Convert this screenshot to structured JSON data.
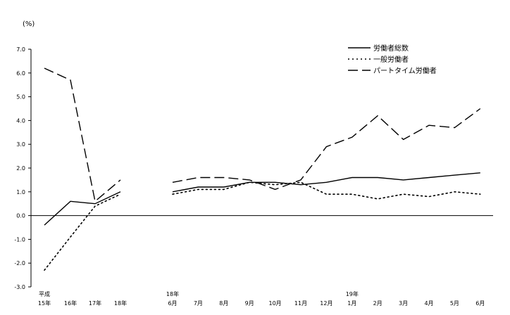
{
  "chart_data": {
    "type": "line",
    "ylabel": "(%)",
    "ylim": [
      -3.0,
      7.0
    ],
    "yticks": [
      "7.0",
      "6.0",
      "5.0",
      "4.0",
      "3.0",
      "2.0",
      "1.0",
      "0.0",
      "-1.0",
      "-2.0",
      "-3.0"
    ],
    "grid": false,
    "legend_position": "top-right",
    "groups": [
      {
        "categories": [
          {
            "top": "平成",
            "bottom": "15年"
          },
          {
            "top": "",
            "bottom": "16年"
          },
          {
            "top": "",
            "bottom": "17年"
          },
          {
            "top": "",
            "bottom": "18年"
          }
        ],
        "series": [
          {
            "name": "労働者総数",
            "values": [
              -0.4,
              0.6,
              0.5,
              1.0
            ]
          },
          {
            "name": "一般労働者",
            "values": [
              -2.3,
              -0.9,
              0.4,
              0.9
            ]
          },
          {
            "name": "パートタイム労働者",
            "values": [
              6.2,
              5.7,
              0.6,
              1.5
            ]
          }
        ]
      },
      {
        "categories": [
          {
            "top": "18年",
            "bottom": "6月"
          },
          {
            "top": "",
            "bottom": "7月"
          },
          {
            "top": "",
            "bottom": "8月"
          },
          {
            "top": "",
            "bottom": "9月"
          },
          {
            "top": "",
            "bottom": "10月"
          },
          {
            "top": "",
            "bottom": "11月"
          },
          {
            "top": "",
            "bottom": "12月"
          },
          {
            "top": "19年",
            "bottom": "1月"
          },
          {
            "top": "",
            "bottom": "2月"
          },
          {
            "top": "",
            "bottom": "3月"
          },
          {
            "top": "",
            "bottom": "4月"
          },
          {
            "top": "",
            "bottom": "5月"
          },
          {
            "top": "",
            "bottom": "6月"
          }
        ],
        "series": [
          {
            "name": "労働者総数",
            "values": [
              1.0,
              1.2,
              1.2,
              1.4,
              1.4,
              1.3,
              1.4,
              1.6,
              1.6,
              1.5,
              1.6,
              1.7,
              1.8
            ]
          },
          {
            "name": "一般労働者",
            "values": [
              0.9,
              1.1,
              1.1,
              1.4,
              1.3,
              1.4,
              0.9,
              0.9,
              0.7,
              0.9,
              0.8,
              1.0,
              0.9
            ]
          },
          {
            "name": "パートタイム労働者",
            "values": [
              1.4,
              1.6,
              1.6,
              1.5,
              1.1,
              1.5,
              2.9,
              3.3,
              4.2,
              3.2,
              3.8,
              3.7,
              4.5
            ]
          }
        ]
      }
    ],
    "legend": [
      {
        "name": "労働者総数",
        "style": "solid"
      },
      {
        "name": "一般労働者",
        "style": "dotted"
      },
      {
        "name": "パートタイム労働者",
        "style": "dashed"
      }
    ]
  }
}
